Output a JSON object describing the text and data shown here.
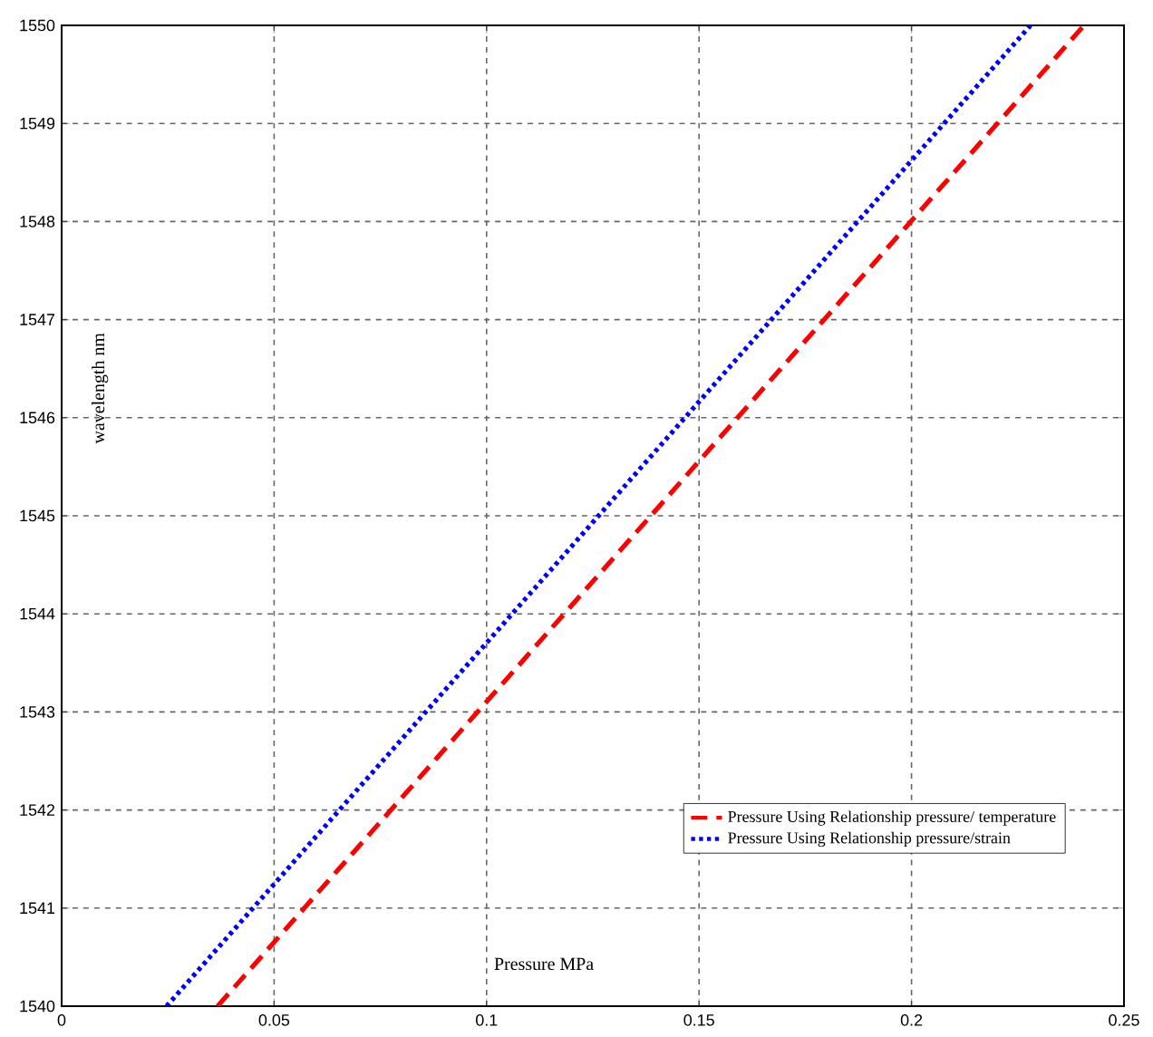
{
  "chart_data": {
    "type": "line",
    "xlabel": "Pressure MPa",
    "ylabel": "wavelength nm",
    "xlim": [
      0,
      0.25
    ],
    "ylim": [
      1540,
      1550
    ],
    "xticks": [
      0,
      0.05,
      0.1,
      0.15,
      0.2,
      0.25
    ],
    "yticks": [
      1540,
      1541,
      1542,
      1543,
      1544,
      1545,
      1546,
      1547,
      1548,
      1549,
      1550
    ],
    "grid": true,
    "legend": "bottom right",
    "marker": "none",
    "series": [
      {
        "name": "Pressure Using Relationship pressure/ temperature",
        "color": "#ff0000",
        "line_style": "dashed",
        "x": [
          0.0367,
          0.2406
        ],
        "values": [
          1540,
          1550
        ]
      },
      {
        "name": "Pressure Using Relationship pressure/strain",
        "color": "#0000ff",
        "line_style": "dotted",
        "x": [
          0.0247,
          0.228
        ],
        "values": [
          1540,
          1550
        ]
      }
    ]
  }
}
